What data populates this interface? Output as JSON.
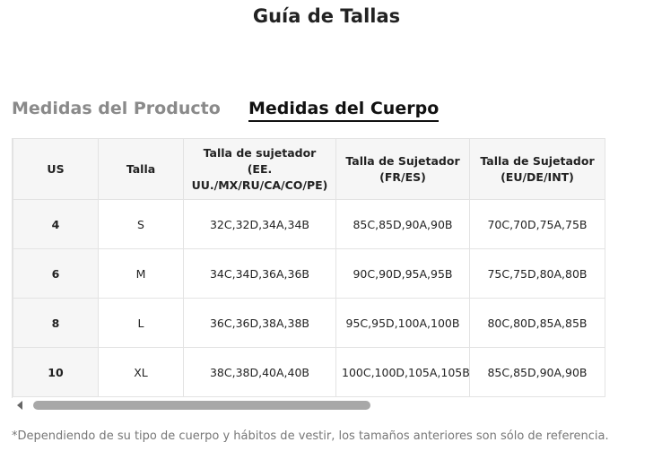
{
  "header": {
    "title": "Guía de Tallas"
  },
  "tabs": [
    "Medidas del Producto",
    "Medidas del Cuerpo"
  ],
  "table": {
    "columns": [
      "US",
      "Talla",
      "Talla de sujetador (EE. UU./MX/RU/CA/CO/PE)",
      "Talla de Sujetador (FR/ES)",
      "Talla de Sujetador (EU/DE/INT)"
    ],
    "rows": [
      [
        "4",
        "S",
        "32C,32D,34A,34B",
        "85C,85D,90A,90B",
        "70C,70D,75A,75B"
      ],
      [
        "6",
        "M",
        "34C,34D,36A,36B",
        "90C,90D,95A,95B",
        "75C,75D,80A,80B"
      ],
      [
        "8",
        "L",
        "36C,36D,38A,38B",
        "95C,95D,100A,100B",
        "80C,80D,85A,85B"
      ],
      [
        "10",
        "XL",
        "38C,38D,40A,40B",
        "100C,100D,105A,105B",
        "85C,85D,90A,90B"
      ]
    ]
  },
  "footnote": "*Dependiendo de su tipo de cuerpo y hábitos de vestir, los tamaños anteriores son sólo de referencia."
}
